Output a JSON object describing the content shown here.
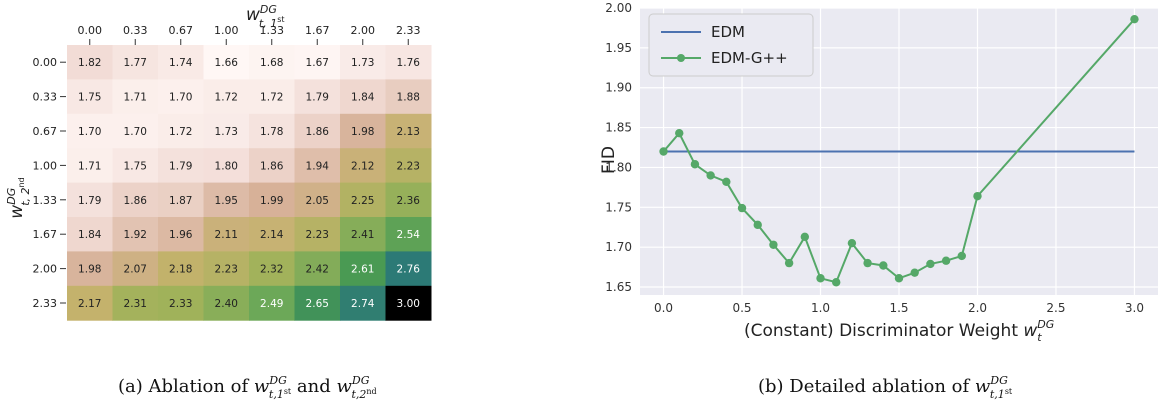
{
  "chart_data": [
    {
      "type": "heatmap",
      "x_label_main": "w",
      "x_label_sup": "DG",
      "x_label_sub": "t, 1",
      "x_label_sub_sup": "st",
      "y_label_main": "w",
      "y_label_sup": "DG",
      "y_label_sub": "t, 2",
      "y_label_sub_sup": "nd",
      "x_ticks": [
        "0.00",
        "0.33",
        "0.67",
        "1.00",
        "1.33",
        "1.67",
        "2.00",
        "2.33"
      ],
      "y_ticks": [
        "0.00",
        "0.33",
        "0.67",
        "1.00",
        "1.33",
        "1.67",
        "2.00",
        "2.33"
      ],
      "values": [
        [
          1.82,
          1.77,
          1.74,
          1.66,
          1.68,
          1.67,
          1.73,
          1.76
        ],
        [
          1.75,
          1.71,
          1.7,
          1.72,
          1.72,
          1.79,
          1.84,
          1.88
        ],
        [
          1.7,
          1.7,
          1.72,
          1.73,
          1.78,
          1.86,
          1.98,
          2.13
        ],
        [
          1.71,
          1.75,
          1.79,
          1.8,
          1.86,
          1.94,
          2.12,
          2.23
        ],
        [
          1.79,
          1.86,
          1.87,
          1.95,
          1.99,
          2.05,
          2.25,
          2.36
        ],
        [
          1.84,
          1.92,
          1.96,
          2.11,
          2.14,
          2.23,
          2.41,
          2.54
        ],
        [
          1.98,
          2.07,
          2.18,
          2.23,
          2.32,
          2.42,
          2.61,
          2.76
        ],
        [
          2.17,
          2.31,
          2.33,
          2.4,
          2.49,
          2.65,
          2.74,
          3.0
        ]
      ],
      "caption": {
        "prefix": "(a) Ablation of ",
        "t1_main": "w",
        "t1_sup": "DG",
        "t1_sub": "t,1",
        "t1_sub_sup": "st",
        "mid": " and ",
        "t2_main": "w",
        "t2_sup": "DG",
        "t2_sub": "t,2",
        "t2_sub_sup": "nd"
      }
    },
    {
      "type": "line",
      "ylabel": "FID",
      "xlabel_text": "(Constant) Discriminator Weight ",
      "xlabel_main": "w",
      "xlabel_sub": "t",
      "xlabel_sup": "DG",
      "xlim": [
        -0.15,
        3.15
      ],
      "ylim": [
        1.64,
        2.0
      ],
      "x_ticks": [
        "0.0",
        "0.5",
        "1.0",
        "1.5",
        "2.0",
        "2.5",
        "3.0"
      ],
      "y_ticks": [
        "1.65",
        "1.70",
        "1.75",
        "1.80",
        "1.85",
        "1.90",
        "1.95",
        "2.00"
      ],
      "legend_position": "upper-left",
      "series": [
        {
          "name": "EDM",
          "color": "#4c72b0",
          "marker": false,
          "x": [
            0.0,
            3.0
          ],
          "y": [
            1.82,
            1.82
          ]
        },
        {
          "name": "EDM-G++",
          "color": "#55a868",
          "marker": true,
          "x": [
            0.0,
            0.1,
            0.2,
            0.3,
            0.4,
            0.5,
            0.6,
            0.7,
            0.8,
            0.9,
            1.0,
            1.1,
            1.2,
            1.3,
            1.4,
            1.5,
            1.6,
            1.7,
            1.8,
            1.9,
            2.0,
            3.0
          ],
          "y": [
            1.82,
            1.843,
            1.804,
            1.79,
            1.782,
            1.749,
            1.728,
            1.703,
            1.68,
            1.713,
            1.661,
            1.656,
            1.705,
            1.68,
            1.677,
            1.661,
            1.668,
            1.679,
            1.683,
            1.689,
            1.764,
            1.986
          ]
        }
      ],
      "caption": {
        "prefix": "(b) Detailed ablation of ",
        "t_main": "w",
        "t_sup": "DG",
        "t_sub": "t,1",
        "t_sub_sup": "st"
      }
    }
  ]
}
